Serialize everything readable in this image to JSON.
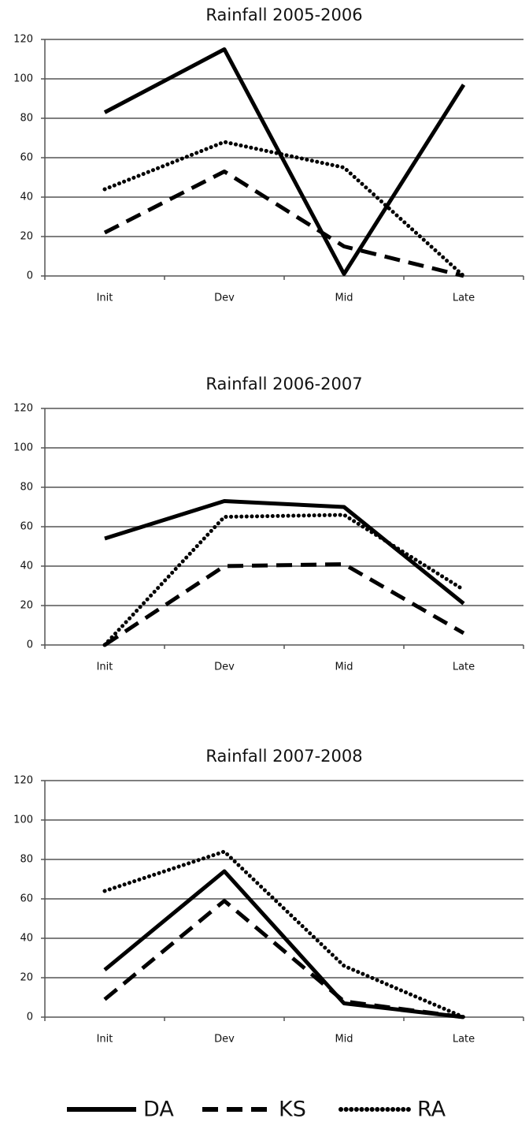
{
  "chart_data": [
    {
      "type": "line",
      "title": "Rainfall 2005-2006",
      "categories": [
        "Init",
        "Dev",
        "Mid",
        "Late"
      ],
      "series": [
        {
          "name": "DA",
          "color": "#000000",
          "style": "solid",
          "values": [
            83,
            115,
            1,
            97
          ]
        },
        {
          "name": "KS",
          "color": "#000000",
          "style": "dashed",
          "values": [
            22,
            53,
            15,
            0
          ]
        },
        {
          "name": "RA",
          "color": "#000000",
          "style": "dotted",
          "values": [
            44,
            68,
            55,
            0
          ]
        }
      ],
      "ylim": [
        0,
        120
      ],
      "yticks": [
        0,
        20,
        40,
        60,
        80,
        100,
        120
      ],
      "grid": true
    },
    {
      "type": "line",
      "title": "Rainfall 2006-2007",
      "categories": [
        "Init",
        "Dev",
        "Mid",
        "Late"
      ],
      "series": [
        {
          "name": "DA",
          "color": "#000000",
          "style": "solid",
          "values": [
            54,
            73,
            70,
            21
          ]
        },
        {
          "name": "KS",
          "color": "#000000",
          "style": "dashed",
          "values": [
            0,
            40,
            41,
            6
          ]
        },
        {
          "name": "RA",
          "color": "#000000",
          "style": "dotted",
          "values": [
            0,
            65,
            66,
            28
          ]
        }
      ],
      "ylim": [
        0,
        120
      ],
      "yticks": [
        0,
        20,
        40,
        60,
        80,
        100,
        120
      ],
      "grid": true
    },
    {
      "type": "line",
      "title": "Rainfall 2007-2008",
      "categories": [
        "Init",
        "Dev",
        "Mid",
        "Late"
      ],
      "series": [
        {
          "name": "DA",
          "color": "#000000",
          "style": "solid",
          "values": [
            24,
            74,
            7,
            0
          ]
        },
        {
          "name": "KS",
          "color": "#000000",
          "style": "dashed",
          "values": [
            9,
            59,
            8,
            0
          ]
        },
        {
          "name": "RA",
          "color": "#000000",
          "style": "dotted",
          "values": [
            64,
            84,
            26,
            0
          ]
        }
      ],
      "ylim": [
        0,
        120
      ],
      "yticks": [
        0,
        20,
        40,
        60,
        80,
        100,
        120
      ],
      "grid": true
    }
  ]
}
